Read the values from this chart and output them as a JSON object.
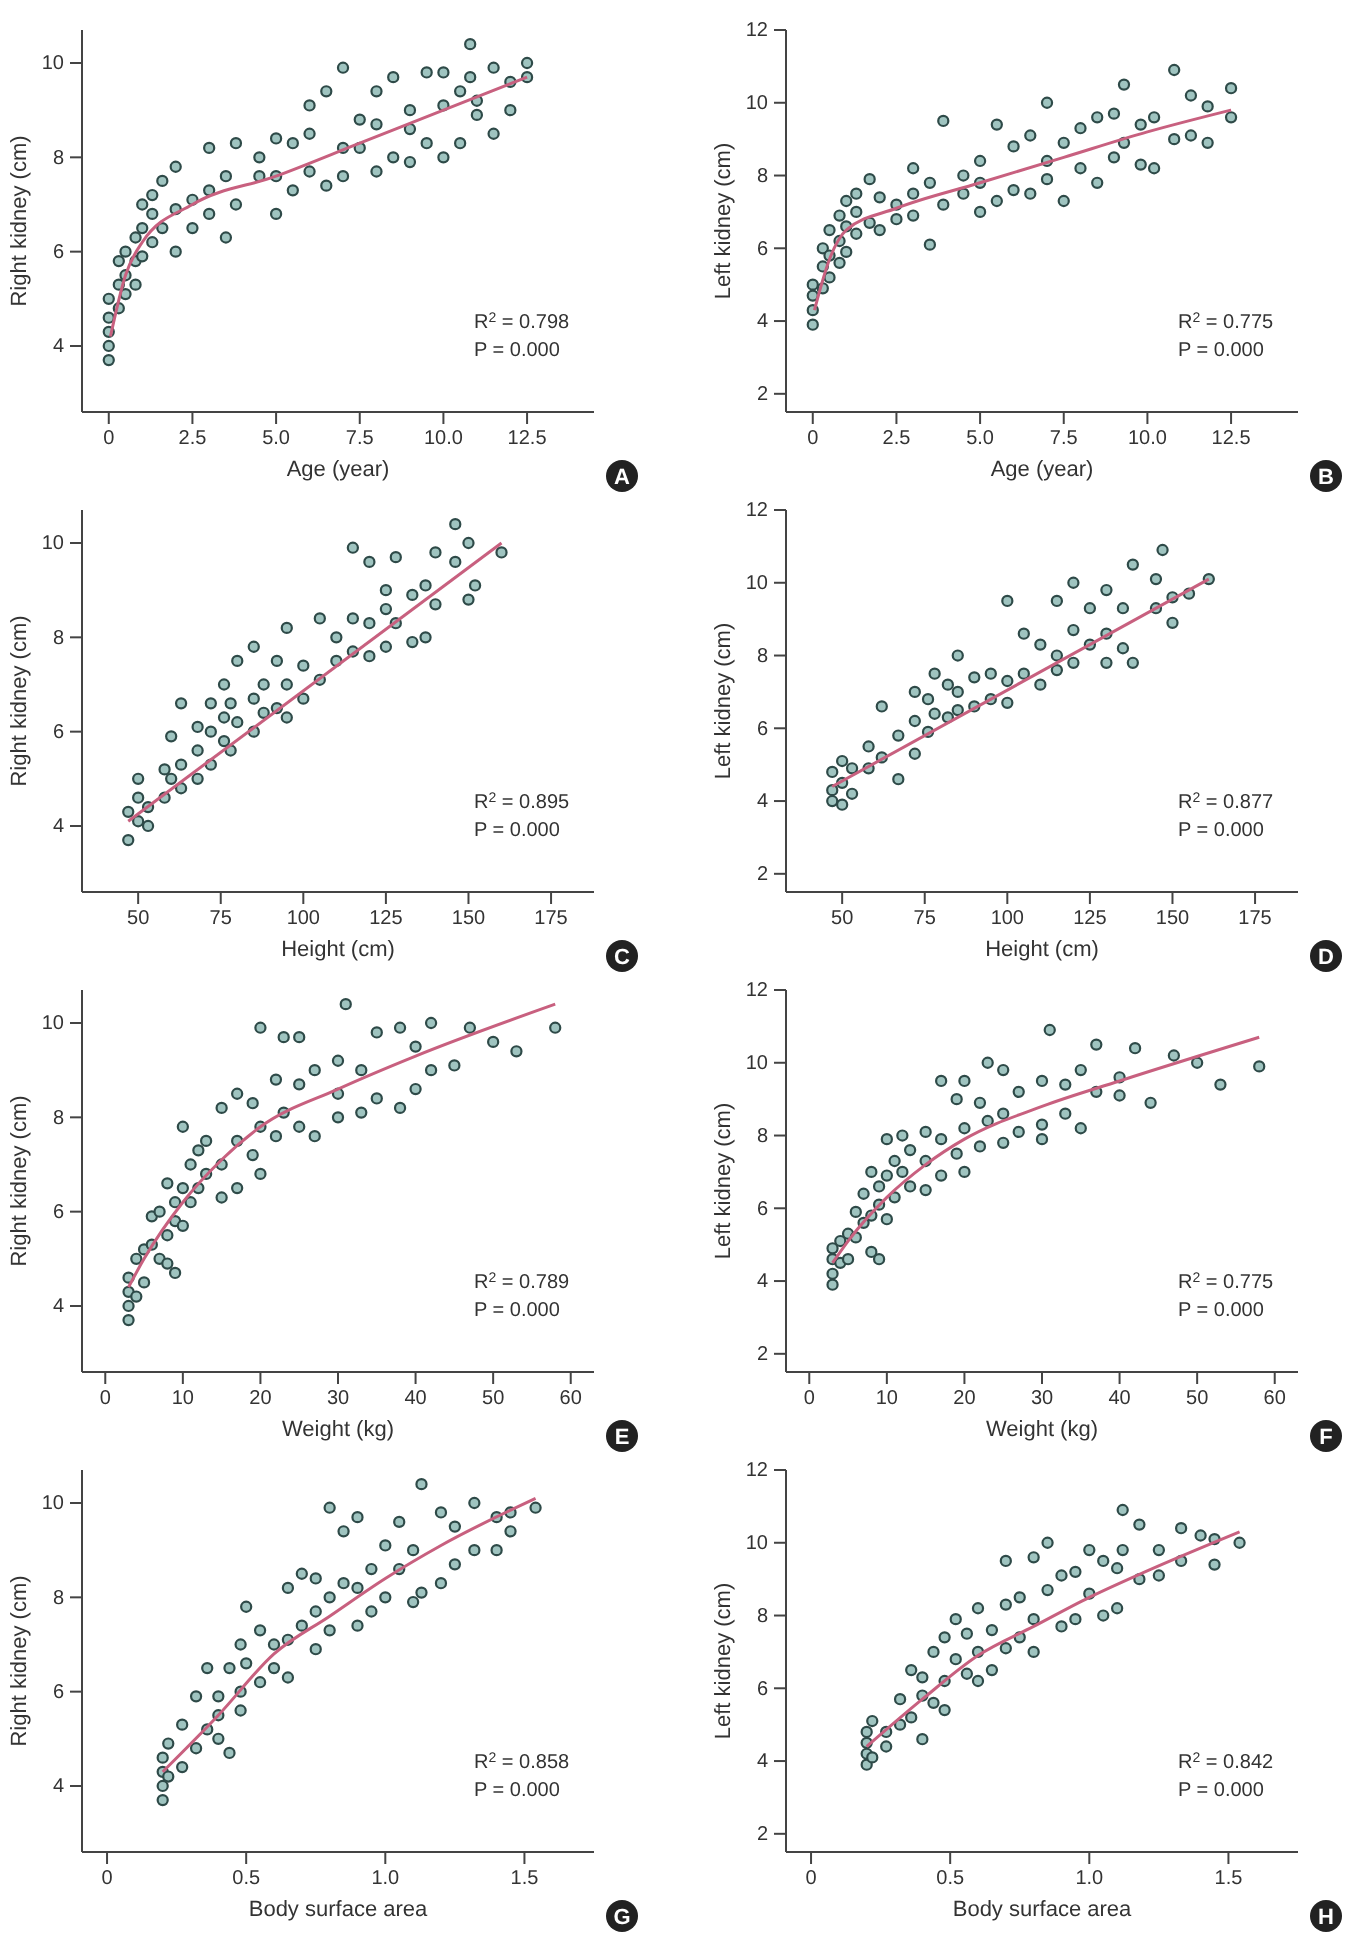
{
  "chart_data": [
    {
      "type": "scatter",
      "marker": "circle",
      "xlabel": "Age (year)",
      "ylabel": "Right kidney (cm)",
      "xlim": [
        -0.8,
        14.5
      ],
      "ylim": [
        2.6,
        10.7
      ],
      "xticks": [
        0,
        2.5,
        {
          "value": 5,
          "label": "5.0"
        },
        7.5,
        {
          "value": 10,
          "label": "10.0"
        },
        12.5
      ],
      "yticks": [
        4,
        6,
        8,
        10
      ],
      "annotations": [
        "R$^{2}$ = 0.798",
        "P = 0.000",
        "A"
      ],
      "series": [
        {
          "type": "scatter",
          "color": "#2e4a48",
          "x": [
            0,
            0,
            0,
            0,
            0,
            0.3,
            0.3,
            0.3,
            0.5,
            0.5,
            0.5,
            0.8,
            0.8,
            0.8,
            1,
            1,
            1,
            1.3,
            1.3,
            1.3,
            1.6,
            1.6,
            2,
            2,
            2,
            2.5,
            2.5,
            3,
            3,
            3,
            3.5,
            3.5,
            3.8,
            3.8,
            4.5,
            4.5,
            5,
            5,
            5,
            5.5,
            5.5,
            6,
            6,
            6,
            6.5,
            6.5,
            7,
            7,
            7,
            7.5,
            7.5,
            8,
            8,
            8,
            8.5,
            8.5,
            9,
            9,
            9,
            9.5,
            9.5,
            10,
            10,
            10,
            10.5,
            10.5,
            10.8,
            10.8,
            11,
            11,
            11.5,
            11.5,
            12,
            12,
            12.5,
            12.5
          ],
          "values": [
            3.7,
            4,
            4.3,
            4.6,
            5,
            5.3,
            4.8,
            5.8,
            5.5,
            6,
            5.1,
            5.8,
            6.3,
            5.3,
            6.5,
            5.9,
            7,
            6.8,
            7.2,
            6.2,
            7.5,
            6.5,
            7.8,
            6,
            6.9,
            6.5,
            7.1,
            8.2,
            6.8,
            7.3,
            6.3,
            7.6,
            8.3,
            7,
            7.6,
            8,
            8.4,
            6.8,
            7.6,
            7.3,
            8.3,
            9.1,
            7.7,
            8.5,
            7.4,
            9.4,
            9.9,
            8.2,
            7.6,
            8.8,
            8.2,
            9.4,
            7.7,
            8.7,
            9.7,
            8,
            9,
            7.9,
            8.6,
            9.8,
            8.3,
            8,
            9.1,
            9.8,
            8.3,
            9.4,
            10.4,
            9.7,
            8.9,
            9.2,
            8.5,
            9.9,
            9,
            9.6,
            10,
            9.7
          ]
        },
        {
          "type": "line",
          "marker": "none",
          "color": "#c8607f",
          "x": [
            0.05,
            0.5,
            1,
            2.5,
            5,
            7.5,
            10,
            12.5
          ],
          "values": [
            4.2,
            5.5,
            6.2,
            7,
            7.6,
            8.3,
            9,
            9.7
          ]
        }
      ]
    },
    {
      "type": "scatter",
      "marker": "circle",
      "xlabel": "Age (year)",
      "ylabel": "Left kidney (cm)",
      "xlim": [
        -0.8,
        14.5
      ],
      "ylim": [
        1.5,
        12
      ],
      "xticks": [
        0,
        2.5,
        {
          "value": 5,
          "label": "5.0"
        },
        7.5,
        {
          "value": 10,
          "label": "10.0"
        },
        12.5
      ],
      "yticks": [
        2,
        4,
        6,
        8,
        10,
        12
      ],
      "annotations": [
        "R$^{2}$ = 0.775",
        "P = 0.000",
        "B"
      ],
      "series": [
        {
          "type": "scatter",
          "color": "#2e4a48",
          "x": [
            0,
            0,
            0,
            0,
            0.3,
            0.3,
            0.3,
            0.5,
            0.5,
            0.5,
            0.8,
            0.8,
            0.8,
            1,
            1,
            1,
            1.3,
            1.3,
            1.3,
            1.7,
            1.7,
            2,
            2,
            2.5,
            2.5,
            3,
            3,
            3,
            3.5,
            3.5,
            3.9,
            3.9,
            4.5,
            4.5,
            5,
            5,
            5,
            5.5,
            5.5,
            6,
            6,
            6.5,
            6.5,
            7,
            7,
            7,
            7.5,
            7.5,
            8,
            8,
            8.5,
            8.5,
            9,
            9,
            9.3,
            9.3,
            9.8,
            9.8,
            10.2,
            10.2,
            10.8,
            10.8,
            11.3,
            11.3,
            11.8,
            11.8,
            12.5,
            12.5
          ],
          "values": [
            3.9,
            4.3,
            4.7,
            5,
            5.5,
            4.9,
            6,
            5.8,
            5.2,
            6.5,
            6.2,
            5.6,
            6.9,
            6.6,
            7.3,
            5.9,
            7,
            7.5,
            6.4,
            7.9,
            6.7,
            7.4,
            6.5,
            7.2,
            6.8,
            8.2,
            6.9,
            7.5,
            6.1,
            7.8,
            9.5,
            7.2,
            7.5,
            8,
            8.4,
            7,
            7.8,
            9.4,
            7.3,
            8.8,
            7.6,
            9.1,
            7.5,
            10,
            8.4,
            7.9,
            8.9,
            7.3,
            9.3,
            8.2,
            7.8,
            9.6,
            9.7,
            8.5,
            10.5,
            8.9,
            9.4,
            8.3,
            9.6,
            8.2,
            10.9,
            9,
            10.2,
            9.1,
            8.9,
            9.9,
            10.4,
            9.6
          ]
        },
        {
          "type": "line",
          "marker": "none",
          "color": "#c8607f",
          "x": [
            0.05,
            0.5,
            1,
            2.5,
            5,
            7.5,
            10,
            12.5
          ],
          "values": [
            4.3,
            5.7,
            6.5,
            7.1,
            7.8,
            8.5,
            9.2,
            9.8
          ]
        }
      ]
    },
    {
      "type": "scatter",
      "marker": "circle",
      "xlabel": "Height (cm)",
      "ylabel": "Right kidney (cm)",
      "xlim": [
        33,
        188
      ],
      "ylim": [
        2.6,
        10.7
      ],
      "xticks": [
        50,
        75,
        100,
        125,
        150,
        175
      ],
      "yticks": [
        4,
        6,
        8,
        10
      ],
      "annotations": [
        "R$^{2}$ = 0.895",
        "P = 0.000",
        "C"
      ],
      "series": [
        {
          "type": "scatter",
          "color": "#2e4a48",
          "x": [
            47,
            47,
            50,
            50,
            50,
            53,
            53,
            58,
            58,
            60,
            60,
            63,
            63,
            63,
            68,
            68,
            68,
            72,
            72,
            72,
            76,
            76,
            76,
            78,
            78,
            80,
            80,
            85,
            85,
            85,
            88,
            88,
            92,
            92,
            95,
            95,
            95,
            100,
            100,
            105,
            105,
            110,
            110,
            115,
            115,
            115,
            120,
            120,
            120,
            125,
            125,
            125,
            128,
            128,
            133,
            133,
            137,
            137,
            140,
            140,
            146,
            146,
            150,
            150,
            152,
            160
          ],
          "values": [
            3.7,
            4.3,
            4.1,
            4.6,
            5,
            4.4,
            4,
            5.2,
            4.6,
            5.9,
            5,
            6.6,
            5.3,
            4.8,
            5.6,
            5,
            6.1,
            6,
            5.3,
            6.6,
            6.3,
            5.8,
            7,
            6.6,
            5.6,
            7.5,
            6.2,
            7.8,
            6.7,
            6,
            7,
            6.4,
            7.5,
            6.5,
            8.2,
            7,
            6.3,
            7.4,
            6.7,
            8.4,
            7.1,
            8,
            7.5,
            9.9,
            7.7,
            8.4,
            9.6,
            8.3,
            7.6,
            9,
            7.8,
            8.6,
            9.7,
            8.3,
            8.9,
            7.9,
            8,
            9.1,
            9.8,
            8.7,
            10.4,
            9.6,
            10,
            8.8,
            9.1,
            9.8
          ]
        },
        {
          "type": "line",
          "marker": "none",
          "color": "#c8607f",
          "x": [
            47,
            160
          ],
          "values": [
            4.1,
            10
          ]
        }
      ]
    },
    {
      "type": "scatter",
      "marker": "circle",
      "xlabel": "Height (cm)",
      "ylabel": "Left kidney (cm)",
      "xlim": [
        33,
        188
      ],
      "ylim": [
        1.5,
        12
      ],
      "xticks": [
        50,
        75,
        100,
        125,
        150,
        175
      ],
      "yticks": [
        2,
        4,
        6,
        8,
        10,
        12
      ],
      "annotations": [
        "R$^{2}$ = 0.877",
        "P = 0.000",
        "D"
      ],
      "series": [
        {
          "type": "scatter",
          "color": "#2e4a48",
          "x": [
            47,
            47,
            47,
            50,
            50,
            50,
            53,
            53,
            58,
            58,
            62,
            62,
            67,
            67,
            72,
            72,
            72,
            76,
            76,
            78,
            78,
            82,
            82,
            85,
            85,
            85,
            90,
            90,
            95,
            95,
            100,
            100,
            100,
            105,
            105,
            110,
            110,
            115,
            115,
            115,
            120,
            120,
            120,
            125,
            125,
            130,
            130,
            130,
            135,
            135,
            138,
            138,
            145,
            145,
            147,
            150,
            150,
            155,
            161
          ],
          "values": [
            4.8,
            4.3,
            4,
            5.1,
            4.5,
            3.9,
            4.9,
            4.2,
            5.5,
            4.9,
            6.6,
            5.2,
            5.8,
            4.6,
            7,
            6.2,
            5.3,
            6.8,
            5.9,
            7.5,
            6.4,
            7.2,
            6.3,
            8,
            7,
            6.5,
            7.4,
            6.6,
            7.5,
            6.8,
            9.5,
            7.3,
            6.7,
            8.6,
            7.5,
            8.3,
            7.2,
            9.5,
            8,
            7.6,
            10,
            8.7,
            7.8,
            9.3,
            8.3,
            9.8,
            8.6,
            7.8,
            9.3,
            8.2,
            10.5,
            7.8,
            10.1,
            9.3,
            10.9,
            9.6,
            8.9,
            9.7,
            10.1
          ]
        },
        {
          "type": "line",
          "marker": "none",
          "color": "#c8607f",
          "x": [
            47,
            161
          ],
          "values": [
            4.4,
            10.1
          ]
        }
      ]
    },
    {
      "type": "scatter",
      "marker": "circle",
      "xlabel": "Weight (kg)",
      "ylabel": "Right kidney (cm)",
      "xlim": [
        -3,
        63
      ],
      "ylim": [
        2.6,
        10.7
      ],
      "xticks": [
        0,
        10,
        20,
        30,
        40,
        50,
        60
      ],
      "yticks": [
        4,
        6,
        8,
        10
      ],
      "annotations": [
        "R$^{2}$ = 0.789",
        "P = 0.000",
        "E"
      ],
      "series": [
        {
          "type": "scatter",
          "color": "#2e4a48",
          "x": [
            3,
            3,
            3,
            3,
            4,
            4,
            5,
            5,
            6,
            6,
            7,
            7,
            8,
            8,
            8,
            9,
            9,
            9,
            10,
            10,
            10,
            11,
            11,
            12,
            12,
            13,
            13,
            15,
            15,
            15,
            17,
            17,
            17,
            19,
            19,
            20,
            20,
            20,
            22,
            22,
            23,
            23,
            25,
            25,
            25,
            27,
            27,
            30,
            30,
            30,
            31,
            33,
            33,
            35,
            35,
            38,
            38,
            40,
            40,
            42,
            42,
            45,
            47,
            50,
            53,
            58
          ],
          "values": [
            3.7,
            4,
            4.3,
            4.6,
            4.2,
            5,
            5.2,
            4.5,
            5.9,
            5.3,
            6,
            5,
            6.6,
            5.5,
            4.9,
            6.2,
            5.8,
            4.7,
            7.8,
            6.5,
            5.7,
            7,
            6.2,
            7.3,
            6.5,
            7.5,
            6.8,
            8.2,
            7,
            6.3,
            8.5,
            7.5,
            6.5,
            8.3,
            7.2,
            9.9,
            7.8,
            6.8,
            8.8,
            7.6,
            9.7,
            8.1,
            9.7,
            7.8,
            8.7,
            9,
            7.6,
            9.2,
            8,
            8.5,
            10.4,
            9,
            8.1,
            9.8,
            8.4,
            9.9,
            8.2,
            8.6,
            9.5,
            10,
            9,
            9.1,
            9.9,
            9.6,
            9.4,
            9.9
          ]
        },
        {
          "type": "line",
          "marker": "none",
          "color": "#c8607f",
          "x": [
            3,
            5,
            10,
            15,
            20,
            30,
            40,
            58
          ],
          "values": [
            4.4,
            5,
            6.2,
            7.1,
            7.8,
            8.6,
            9.3,
            10.4
          ]
        }
      ]
    },
    {
      "type": "scatter",
      "marker": "circle",
      "xlabel": "Weight (kg)",
      "ylabel": "Left kidney (cm)",
      "xlim": [
        -3,
        63
      ],
      "ylim": [
        1.5,
        12
      ],
      "xticks": [
        0,
        10,
        20,
        30,
        40,
        50,
        60
      ],
      "yticks": [
        2,
        4,
        6,
        8,
        10,
        12
      ],
      "annotations": [
        "R$^{2}$ = 0.775",
        "P = 0.000",
        "F"
      ],
      "series": [
        {
          "type": "scatter",
          "color": "#2e4a48",
          "x": [
            3,
            3,
            3,
            3,
            4,
            4,
            5,
            5,
            6,
            6,
            7,
            7,
            8,
            8,
            8,
            9,
            9,
            9,
            10,
            10,
            10,
            11,
            11,
            12,
            12,
            13,
            13,
            15,
            15,
            15,
            17,
            17,
            17,
            19,
            19,
            20,
            20,
            20,
            22,
            22,
            23,
            23,
            25,
            25,
            25,
            27,
            27,
            30,
            30,
            30,
            31,
            33,
            33,
            35,
            35,
            37,
            37,
            40,
            40,
            42,
            44,
            47,
            50,
            53,
            58
          ],
          "values": [
            3.9,
            4.2,
            4.6,
            4.9,
            4.5,
            5.1,
            5.3,
            4.6,
            5.9,
            5.2,
            6.4,
            5.6,
            7,
            5.8,
            4.8,
            6.6,
            6.1,
            4.6,
            7.9,
            6.9,
            5.7,
            7.3,
            6.3,
            8,
            7,
            7.6,
            6.6,
            8.1,
            7.3,
            6.5,
            9.5,
            7.9,
            6.9,
            9,
            7.5,
            9.5,
            8.2,
            7,
            8.9,
            7.7,
            10,
            8.4,
            9.8,
            8.6,
            7.8,
            9.2,
            8.1,
            9.5,
            8.3,
            7.9,
            10.9,
            9.4,
            8.6,
            9.8,
            8.2,
            10.5,
            9.2,
            9.6,
            9.1,
            10.4,
            8.9,
            10.2,
            10,
            9.4,
            9.9
          ]
        },
        {
          "type": "line",
          "marker": "none",
          "color": "#c8607f",
          "x": [
            3,
            5,
            10,
            15,
            20,
            30,
            40,
            58
          ],
          "values": [
            4.5,
            5.1,
            6.3,
            7.2,
            7.9,
            8.8,
            9.5,
            10.7
          ]
        }
      ]
    },
    {
      "type": "scatter",
      "marker": "circle",
      "xlabel": "Body surface area",
      "ylabel": "Right kidney (cm)",
      "xlim": [
        -0.09,
        1.75
      ],
      "ylim": [
        2.6,
        10.7
      ],
      "xticks": [
        0,
        0.5,
        {
          "value": 1,
          "label": "1.0"
        },
        1.5
      ],
      "yticks": [
        4,
        6,
        8,
        10
      ],
      "annotations": [
        "R$^{2}$ = 0.858",
        "P = 0.000",
        "G"
      ],
      "series": [
        {
          "type": "scatter",
          "color": "#2e4a48",
          "x": [
            0.2,
            0.2,
            0.2,
            0.2,
            0.22,
            0.22,
            0.27,
            0.27,
            0.32,
            0.32,
            0.36,
            0.36,
            0.4,
            0.4,
            0.4,
            0.44,
            0.44,
            0.48,
            0.48,
            0.48,
            0.5,
            0.5,
            0.55,
            0.55,
            0.6,
            0.6,
            0.65,
            0.65,
            0.65,
            0.7,
            0.7,
            0.75,
            0.75,
            0.75,
            0.8,
            0.8,
            0.8,
            0.85,
            0.85,
            0.9,
            0.9,
            0.9,
            0.95,
            0.95,
            1,
            1,
            1.05,
            1.05,
            1.1,
            1.1,
            1.13,
            1.13,
            1.2,
            1.2,
            1.25,
            1.25,
            1.32,
            1.32,
            1.4,
            1.4,
            1.45,
            1.45,
            1.54
          ],
          "values": [
            3.7,
            4,
            4.3,
            4.6,
            4.9,
            4.2,
            5.3,
            4.4,
            5.9,
            4.8,
            6.5,
            5.2,
            5.9,
            5,
            5.5,
            6.5,
            4.7,
            7,
            6,
            5.6,
            7.8,
            6.6,
            7.3,
            6.2,
            7,
            6.5,
            8.2,
            7.1,
            6.3,
            8.5,
            7.4,
            8.4,
            7.7,
            6.9,
            9.9,
            8,
            7.3,
            9.4,
            8.3,
            9.7,
            8.2,
            7.4,
            8.6,
            7.7,
            9.1,
            8,
            9.6,
            8.6,
            9,
            7.9,
            10.4,
            8.1,
            9.8,
            8.3,
            9.5,
            8.7,
            10,
            9,
            9.7,
            9,
            9.8,
            9.4,
            9.9
          ]
        },
        {
          "type": "line",
          "marker": "none",
          "color": "#c8607f",
          "x": [
            0.2,
            0.4,
            0.6,
            0.8,
            1,
            1.2,
            1.54
          ],
          "values": [
            4.3,
            5.5,
            6.8,
            7.6,
            8.4,
            9.1,
            10.1
          ]
        }
      ]
    },
    {
      "type": "scatter",
      "marker": "circle",
      "xlabel": "Body surface area",
      "ylabel": "Left kidney (cm)",
      "xlim": [
        -0.09,
        1.75
      ],
      "ylim": [
        1.5,
        12
      ],
      "xticks": [
        0,
        0.5,
        {
          "value": 1,
          "label": "1.0"
        },
        1.5
      ],
      "yticks": [
        2,
        4,
        6,
        8,
        10,
        12
      ],
      "annotations": [
        "R$^{2}$ = 0.842",
        "P = 0.000",
        "H"
      ],
      "series": [
        {
          "type": "scatter",
          "color": "#2e4a48",
          "x": [
            0.2,
            0.2,
            0.2,
            0.2,
            0.22,
            0.22,
            0.27,
            0.27,
            0.32,
            0.32,
            0.36,
            0.36,
            0.4,
            0.4,
            0.4,
            0.44,
            0.44,
            0.48,
            0.48,
            0.48,
            0.52,
            0.52,
            0.56,
            0.56,
            0.6,
            0.6,
            0.6,
            0.65,
            0.65,
            0.7,
            0.7,
            0.7,
            0.75,
            0.75,
            0.8,
            0.8,
            0.8,
            0.85,
            0.85,
            0.9,
            0.9,
            0.95,
            0.95,
            1,
            1,
            1.05,
            1.05,
            1.1,
            1.1,
            1.12,
            1.12,
            1.18,
            1.18,
            1.25,
            1.25,
            1.33,
            1.33,
            1.4,
            1.45,
            1.45,
            1.54
          ],
          "values": [
            3.9,
            4.2,
            4.5,
            4.8,
            5.1,
            4.1,
            4.8,
            4.4,
            5.7,
            5,
            6.5,
            5.2,
            6.3,
            5.8,
            4.6,
            7,
            5.6,
            7.4,
            6.2,
            5.4,
            7.9,
            6.8,
            7.5,
            6.4,
            8.2,
            7,
            6.2,
            7.6,
            6.5,
            9.5,
            8.3,
            7.1,
            8.5,
            7.4,
            9.6,
            7.9,
            7,
            10,
            8.7,
            9.1,
            7.7,
            9.2,
            7.9,
            9.8,
            8.6,
            9.5,
            8,
            9.3,
            8.2,
            10.9,
            9.8,
            10.5,
            9,
            9.8,
            9.1,
            10.4,
            9.5,
            10.2,
            10.1,
            9.4,
            10
          ]
        },
        {
          "type": "line",
          "marker": "none",
          "color": "#c8607f",
          "x": [
            0.2,
            0.4,
            0.6,
            0.8,
            1,
            1.2,
            1.54
          ],
          "values": [
            4.4,
            5.7,
            6.9,
            7.7,
            8.5,
            9.2,
            10.3
          ]
        }
      ]
    }
  ]
}
